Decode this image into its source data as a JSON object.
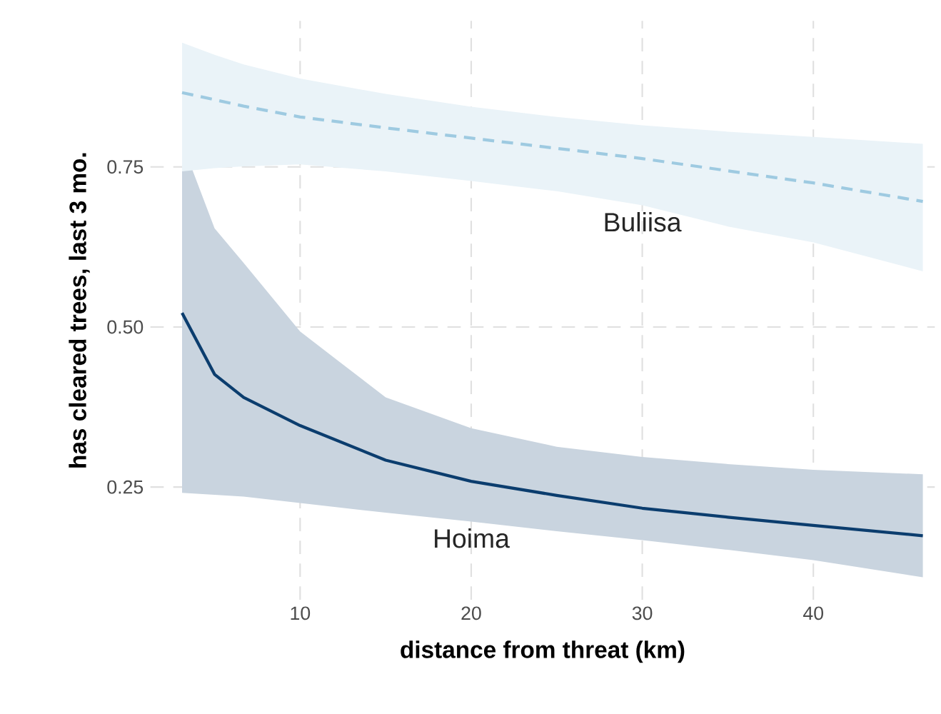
{
  "chart_data": {
    "type": "line",
    "xlabel": "distance from threat (km)",
    "ylabel": "has cleared trees, last 3 mo.",
    "xlim": [
      1.25,
      47.1
    ],
    "ylim": [
      0.074,
      0.978
    ],
    "xticks": [
      10,
      20,
      30,
      40
    ],
    "yticks": [
      {
        "value": 0.25,
        "label": "0.25"
      },
      {
        "value": 0.5,
        "label": "0.50"
      },
      {
        "value": 0.75,
        "label": "0.75"
      }
    ],
    "grid": true,
    "marker": "none",
    "series": [
      {
        "name": "Hoima",
        "color": "#0b3d6e",
        "line_style": "solid",
        "x": [
          3.1,
          5,
          6.7,
          10,
          15,
          20,
          25,
          30,
          35,
          40,
          46.4
        ],
        "values": [
          0.522,
          0.426,
          0.39,
          0.346,
          0.292,
          0.259,
          0.237,
          0.217,
          0.203,
          0.19,
          0.174
        ],
        "upper": [
          0.788,
          0.654,
          0.6,
          0.493,
          0.39,
          0.342,
          0.313,
          0.297,
          0.286,
          0.277,
          0.27
        ],
        "lower": [
          0.241,
          0.238,
          0.235,
          0.225,
          0.21,
          0.196,
          0.181,
          0.167,
          0.152,
          0.136,
          0.109
        ]
      },
      {
        "name": "Buliisa",
        "color": "#9ecae1",
        "line_style": "dashed",
        "x": [
          3.1,
          5,
          6.7,
          10,
          15,
          20,
          25,
          30,
          35,
          40,
          46.4
        ],
        "values": [
          0.866,
          0.855,
          0.845,
          0.828,
          0.811,
          0.795,
          0.779,
          0.763,
          0.744,
          0.725,
          0.696
        ],
        "upper": [
          0.944,
          0.925,
          0.91,
          0.888,
          0.864,
          0.844,
          0.828,
          0.815,
          0.805,
          0.797,
          0.786
        ],
        "lower": [
          0.743,
          0.748,
          0.751,
          0.754,
          0.743,
          0.728,
          0.712,
          0.69,
          0.657,
          0.632,
          0.587
        ]
      }
    ]
  }
}
